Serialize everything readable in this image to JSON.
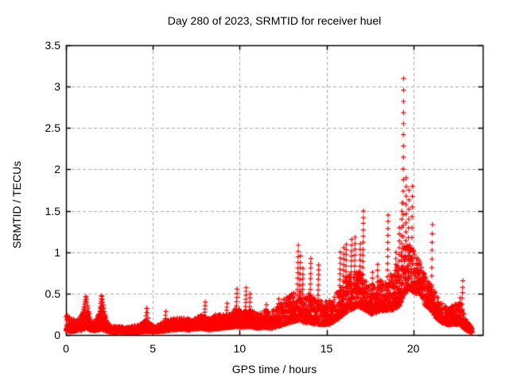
{
  "chart_data": {
    "type": "scatter",
    "title": "Day 280 of 2023, SRMTID for receiver huel",
    "xlabel": "GPS time / hours",
    "ylabel": "SRMTID / TECUs",
    "xlim": [
      0,
      24
    ],
    "ylim": [
      0,
      3.5
    ],
    "xticks": [
      0,
      5,
      10,
      15,
      20
    ],
    "xtick_labels": [
      "0",
      "5",
      "10",
      "15",
      "20"
    ],
    "yticks": [
      0,
      0.5,
      1,
      1.5,
      2,
      2.5,
      3,
      3.5
    ],
    "ytick_labels": [
      "0",
      "0.5",
      "1",
      "1.5",
      "2",
      "2.5",
      "3",
      "3.5"
    ],
    "grid": true,
    "grid_style": "dashed",
    "legend": null,
    "marker": "plus",
    "marker_color": "#ff0000",
    "grid_color": "#a8a8a8",
    "border_color": "#000000",
    "peak_value": 3.1,
    "peak_time": 19.4,
    "band_envelope": [
      [
        0.0,
        0.05,
        0.25
      ],
      [
        0.3,
        0.04,
        0.2
      ],
      [
        0.6,
        0.05,
        0.18
      ],
      [
        0.9,
        0.06,
        0.25
      ],
      [
        1.15,
        0.08,
        0.35
      ],
      [
        1.4,
        0.06,
        0.2
      ],
      [
        1.6,
        0.05,
        0.15
      ],
      [
        1.85,
        0.06,
        0.25
      ],
      [
        2.05,
        0.07,
        0.35
      ],
      [
        2.3,
        0.05,
        0.2
      ],
      [
        2.6,
        0.03,
        0.12
      ],
      [
        3.0,
        0.03,
        0.1
      ],
      [
        3.6,
        0.03,
        0.1
      ],
      [
        4.2,
        0.03,
        0.12
      ],
      [
        4.6,
        0.04,
        0.18
      ],
      [
        5.0,
        0.04,
        0.12
      ],
      [
        5.4,
        0.04,
        0.14
      ],
      [
        5.8,
        0.05,
        0.18
      ],
      [
        6.2,
        0.06,
        0.2
      ],
      [
        6.6,
        0.07,
        0.22
      ],
      [
        7.0,
        0.06,
        0.2
      ],
      [
        7.4,
        0.07,
        0.2
      ],
      [
        7.8,
        0.08,
        0.25
      ],
      [
        8.2,
        0.06,
        0.2
      ],
      [
        8.6,
        0.07,
        0.25
      ],
      [
        9.0,
        0.08,
        0.25
      ],
      [
        9.4,
        0.09,
        0.28
      ],
      [
        9.8,
        0.1,
        0.32
      ],
      [
        10.2,
        0.09,
        0.3
      ],
      [
        10.6,
        0.1,
        0.3
      ],
      [
        11.0,
        0.08,
        0.28
      ],
      [
        11.4,
        0.09,
        0.3
      ],
      [
        11.8,
        0.08,
        0.28
      ],
      [
        12.2,
        0.1,
        0.35
      ],
      [
        12.6,
        0.13,
        0.45
      ],
      [
        13.0,
        0.15,
        0.5
      ],
      [
        13.4,
        0.18,
        0.55
      ],
      [
        13.7,
        0.15,
        0.5
      ],
      [
        14.0,
        0.15,
        0.5
      ],
      [
        14.4,
        0.13,
        0.45
      ],
      [
        14.8,
        0.12,
        0.4
      ],
      [
        15.2,
        0.13,
        0.42
      ],
      [
        15.6,
        0.18,
        0.55
      ],
      [
        16.0,
        0.25,
        0.7
      ],
      [
        16.4,
        0.3,
        0.75
      ],
      [
        16.8,
        0.35,
        0.8
      ],
      [
        17.2,
        0.3,
        0.7
      ],
      [
        17.6,
        0.25,
        0.6
      ],
      [
        18.0,
        0.28,
        0.65
      ],
      [
        18.4,
        0.3,
        0.7
      ],
      [
        18.8,
        0.3,
        0.75
      ],
      [
        19.2,
        0.35,
        0.9
      ],
      [
        19.5,
        0.5,
        1.1
      ],
      [
        19.8,
        0.55,
        1.1
      ],
      [
        20.1,
        0.5,
        1.0
      ],
      [
        20.4,
        0.5,
        0.9
      ],
      [
        20.7,
        0.35,
        0.7
      ],
      [
        21.0,
        0.3,
        0.6
      ],
      [
        21.3,
        0.2,
        0.5
      ],
      [
        21.6,
        0.15,
        0.4
      ],
      [
        22.0,
        0.12,
        0.33
      ],
      [
        22.4,
        0.13,
        0.38
      ],
      [
        22.7,
        0.12,
        0.4
      ],
      [
        23.0,
        0.06,
        0.2
      ],
      [
        23.2,
        0.04,
        0.14
      ],
      [
        23.4,
        0.03,
        0.1
      ]
    ],
    "spike_strings": [
      [
        0.85,
        0.12,
        1.15,
        0.46,
        12
      ],
      [
        1.15,
        0.46,
        1.45,
        0.12,
        11
      ],
      [
        1.85,
        0.1,
        2.05,
        0.47,
        13
      ],
      [
        2.05,
        0.47,
        2.35,
        0.1,
        11
      ],
      [
        4.55,
        0.1,
        4.65,
        0.32,
        6
      ],
      [
        4.65,
        0.32,
        4.78,
        0.1,
        5
      ],
      [
        5.65,
        0.08,
        5.75,
        0.28,
        6
      ],
      [
        7.95,
        0.15,
        8.02,
        0.4,
        7
      ],
      [
        9.2,
        0.12,
        9.28,
        0.38,
        7
      ],
      [
        9.8,
        0.2,
        9.85,
        0.55,
        8
      ],
      [
        10.33,
        0.25,
        10.38,
        0.57,
        8
      ],
      [
        10.55,
        0.2,
        10.6,
        0.5,
        7
      ],
      [
        11.5,
        0.15,
        11.55,
        0.37,
        5
      ],
      [
        12.2,
        0.18,
        12.25,
        0.43,
        6
      ],
      [
        13.33,
        0.55,
        13.38,
        1.08,
        9
      ],
      [
        13.45,
        0.45,
        13.5,
        0.95,
        8
      ],
      [
        13.6,
        0.3,
        13.65,
        0.8,
        9
      ],
      [
        14.05,
        0.3,
        14.1,
        0.93,
        11
      ],
      [
        14.5,
        0.3,
        14.55,
        0.85,
        10
      ],
      [
        15.75,
        0.4,
        15.8,
        1.0,
        10
      ],
      [
        15.95,
        0.45,
        16.0,
        1.05,
        10
      ],
      [
        16.1,
        0.5,
        16.15,
        1.1,
        10
      ],
      [
        16.4,
        0.5,
        16.45,
        1.15,
        11
      ],
      [
        16.6,
        0.55,
        16.65,
        1.18,
        10
      ],
      [
        16.9,
        0.5,
        16.95,
        1.1,
        10
      ],
      [
        17.08,
        0.5,
        17.13,
        1.5,
        14
      ],
      [
        17.6,
        0.3,
        17.65,
        0.75,
        8
      ],
      [
        17.9,
        0.3,
        17.95,
        0.85,
        9
      ],
      [
        18.5,
        0.45,
        18.55,
        1.45,
        13
      ],
      [
        18.95,
        0.35,
        19.0,
        1.0,
        10
      ],
      [
        19.15,
        0.4,
        19.2,
        1.3,
        12
      ],
      [
        19.3,
        0.5,
        19.35,
        1.6,
        12
      ],
      [
        19.42,
        1.05,
        19.44,
        3.1,
        16
      ],
      [
        19.55,
        0.7,
        19.6,
        1.9,
        12
      ],
      [
        19.7,
        0.6,
        19.75,
        1.75,
        11
      ],
      [
        19.9,
        0.8,
        19.95,
        1.8,
        9
      ],
      [
        21.05,
        0.4,
        21.1,
        1.33,
        10
      ],
      [
        22.6,
        0.2,
        22.7,
        0.45,
        6
      ],
      [
        22.8,
        0.3,
        22.85,
        0.65,
        6
      ]
    ]
  }
}
